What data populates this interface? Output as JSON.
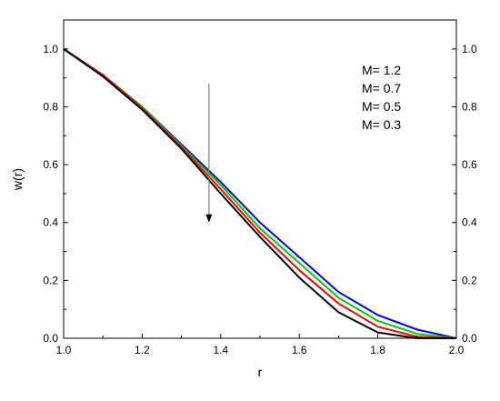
{
  "chart_data": {
    "type": "line",
    "xlabel": "r",
    "ylabel": "w(r)",
    "xlim": [
      1.0,
      2.0
    ],
    "ylim": [
      0.0,
      1.1
    ],
    "x_ticks": [
      "1.0",
      "1.2",
      "1.4",
      "1.6",
      "1.8",
      "2.0"
    ],
    "y_ticks": [
      "0.0",
      "0.2",
      "0.4",
      "0.6",
      "0.8",
      "1.0"
    ],
    "right_y_ticks": [
      "0.0",
      "0.2",
      "0.4",
      "0.6",
      "0.8",
      "1.0"
    ],
    "x": [
      1.0,
      1.1,
      1.2,
      1.3,
      1.4,
      1.5,
      1.6,
      1.7,
      1.8,
      1.9,
      2.0
    ],
    "series": [
      {
        "name": "M= 1.2",
        "color": "#0000ff",
        "values": [
          1.0,
          0.91,
          0.8,
          0.67,
          0.54,
          0.4,
          0.28,
          0.16,
          0.08,
          0.03,
          0.0
        ]
      },
      {
        "name": "M= 0.7",
        "color": "#00cc00",
        "values": [
          1.0,
          0.91,
          0.8,
          0.665,
          0.53,
          0.38,
          0.26,
          0.14,
          0.06,
          0.015,
          0.0
        ]
      },
      {
        "name": "M= 0.5",
        "color": "#ff0000",
        "values": [
          1.0,
          0.91,
          0.795,
          0.66,
          0.515,
          0.365,
          0.235,
          0.12,
          0.04,
          0.005,
          0.0
        ]
      },
      {
        "name": "M= 0.3",
        "color": "#000000",
        "values": [
          1.0,
          0.905,
          0.79,
          0.655,
          0.5,
          0.35,
          0.21,
          0.09,
          0.02,
          0.0,
          0.0
        ]
      }
    ],
    "legend": {
      "placement": "top-right"
    },
    "annotation": {
      "type": "arrow",
      "direction": "down",
      "x": 1.37,
      "y_from": 0.88,
      "y_to": 0.4,
      "color": "#808080"
    },
    "grid": false
  }
}
